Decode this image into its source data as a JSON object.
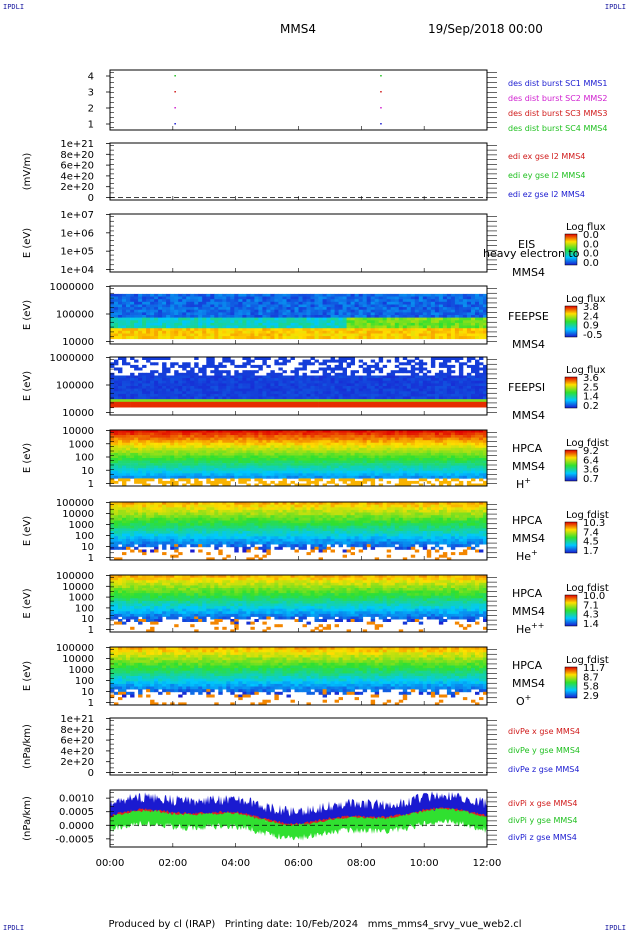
{
  "corner_labels": {
    "tl": "IPDLI",
    "tr": "IPDLI",
    "bl": "IPDLI",
    "br": "IPDLI"
  },
  "header": {
    "mission": "MMS4",
    "date": "19/Sep/2018 00:00"
  },
  "footer": {
    "producer": "Produced by cl (IRAP)",
    "printing": "Printing date: 10/Feb/2024",
    "file": "mms_mms4_srvy_vue_web2.cl"
  },
  "chart_data": [
    {
      "type": "scatter",
      "id": "burst",
      "ylabel": "",
      "yticks": [
        "1",
        "2",
        "3",
        "4"
      ],
      "series": [
        {
          "name": "des dist burst SC1 MMS1",
          "color": "#1a1ad0",
          "points": [
            [
              2.05,
              1
            ],
            [
              8.6,
              1
            ]
          ]
        },
        {
          "name": "des dist burst SC2 MMS2",
          "color": "#d020d0",
          "points": [
            [
              2.05,
              2
            ],
            [
              8.6,
              2
            ]
          ]
        },
        {
          "name": "des dist burst SC3 MMS3",
          "color": "#d01a1a",
          "points": [
            [
              2.05,
              3
            ],
            [
              8.6,
              3
            ]
          ]
        },
        {
          "name": "des dist burst SC4 MMS4",
          "color": "#20c020",
          "points": [
            [
              2.05,
              4
            ],
            [
              8.6,
              4
            ]
          ]
        }
      ]
    },
    {
      "type": "line",
      "id": "edi",
      "ylabel": "(mV/m)",
      "yticks": [
        "0",
        "2e+20",
        "4e+20",
        "6e+20",
        "8e+20",
        "1e+21"
      ],
      "series": [
        {
          "name": "edi ex gse l2 MMS4",
          "color": "#d01a1a"
        },
        {
          "name": "edi ey gse l2 MMS4",
          "color": "#20c020"
        },
        {
          "name": "edi ez gse l2 MMS4",
          "color": "#1a1ad0"
        }
      ]
    },
    {
      "type": "heatmap",
      "id": "eis",
      "ylabel": "E (eV)",
      "yticks": [
        "1e+04",
        "1e+05",
        "1e+06",
        "1e+07"
      ],
      "inst": "EIS",
      "mms": "MMS4",
      "overlay": "heavy electron to",
      "cbar_title": "Log flux",
      "cbar_ticks": [
        "0.0",
        "0.0",
        "0.0",
        "0.0"
      ]
    },
    {
      "type": "heatmap",
      "id": "feepse",
      "ylabel": "E (eV)",
      "yticks": [
        "10000",
        "100000",
        "1000000"
      ],
      "inst": "FEEPSE",
      "mms": "MMS4",
      "cbar_title": "Log flux",
      "cbar_ticks": [
        "3.8",
        "2.4",
        "0.9",
        "-0.5"
      ]
    },
    {
      "type": "heatmap",
      "id": "feepsi",
      "ylabel": "E (eV)",
      "yticks": [
        "10000",
        "100000",
        "1000000"
      ],
      "inst": "FEEPSI",
      "mms": "MMS4",
      "cbar_title": "Log flux",
      "cbar_ticks": [
        "3.6",
        "2.5",
        "1.4",
        "0.2"
      ]
    },
    {
      "type": "heatmap",
      "id": "hpca_h",
      "ylabel": "E (eV)",
      "yticks": [
        "1",
        "10",
        "100",
        "1000",
        "10000"
      ],
      "inst": "HPCA",
      "mms": "MMS4",
      "ion": "H",
      "ion_sup": "+",
      "cbar_title": "Log fdist",
      "cbar_ticks": [
        "9.2",
        "6.4",
        "3.6",
        "0.7"
      ]
    },
    {
      "type": "heatmap",
      "id": "hpca_he",
      "ylabel": "E (eV)",
      "yticks": [
        "1",
        "10",
        "100",
        "1000",
        "10000",
        "100000"
      ],
      "inst": "HPCA",
      "mms": "MMS4",
      "ion": "He",
      "ion_sup": "+",
      "cbar_title": "Log fdist",
      "cbar_ticks": [
        "10.3",
        "7.4",
        "4.5",
        "1.7"
      ]
    },
    {
      "type": "heatmap",
      "id": "hpca_hepp",
      "ylabel": "E (eV)",
      "yticks": [
        "1",
        "10",
        "100",
        "1000",
        "10000",
        "100000"
      ],
      "inst": "HPCA",
      "mms": "MMS4",
      "ion": "He",
      "ion_sup": "++",
      "cbar_title": "Log fdist",
      "cbar_ticks": [
        "10.0",
        "7.1",
        "4.3",
        "1.4"
      ]
    },
    {
      "type": "heatmap",
      "id": "hpca_o",
      "ylabel": "E (eV)",
      "yticks": [
        "1",
        "10",
        "100",
        "1000",
        "10000",
        "100000"
      ],
      "inst": "HPCA",
      "mms": "MMS4",
      "ion": "O",
      "ion_sup": "+",
      "cbar_title": "Log fdist",
      "cbar_ticks": [
        "11.7",
        "8.7",
        "5.8",
        "2.9"
      ]
    },
    {
      "type": "line",
      "id": "divpe",
      "ylabel": "(nPa/km)",
      "yticks": [
        "0",
        "2e+20",
        "4e+20",
        "6e+20",
        "8e+20",
        "1e+21"
      ],
      "series": [
        {
          "name": "divPe x gse MMS4",
          "color": "#d01a1a"
        },
        {
          "name": "divPe y gse MMS4",
          "color": "#20c020"
        },
        {
          "name": "divPe z gse MMS4",
          "color": "#1a1ad0"
        }
      ]
    },
    {
      "type": "line",
      "id": "divpi",
      "ylabel": "(nPa/km)",
      "yticks": [
        "-0.0005",
        "0.0000",
        "0.0005",
        "0.0010"
      ],
      "ylim": [
        -0.0008,
        0.0013
      ],
      "series": [
        {
          "name": "divPi x gse MMS4",
          "color": "#d01a1a"
        },
        {
          "name": "divPi y gse MMS4",
          "color": "#20c020"
        },
        {
          "name": "divPi z gse MMS4",
          "color": "#1a1ad0"
        }
      ]
    }
  ],
  "xaxis": {
    "ticks": [
      "00:00",
      "02:00",
      "04:00",
      "06:00",
      "08:00",
      "10:00",
      "12:00"
    ],
    "range_hours": [
      0,
      12
    ]
  }
}
